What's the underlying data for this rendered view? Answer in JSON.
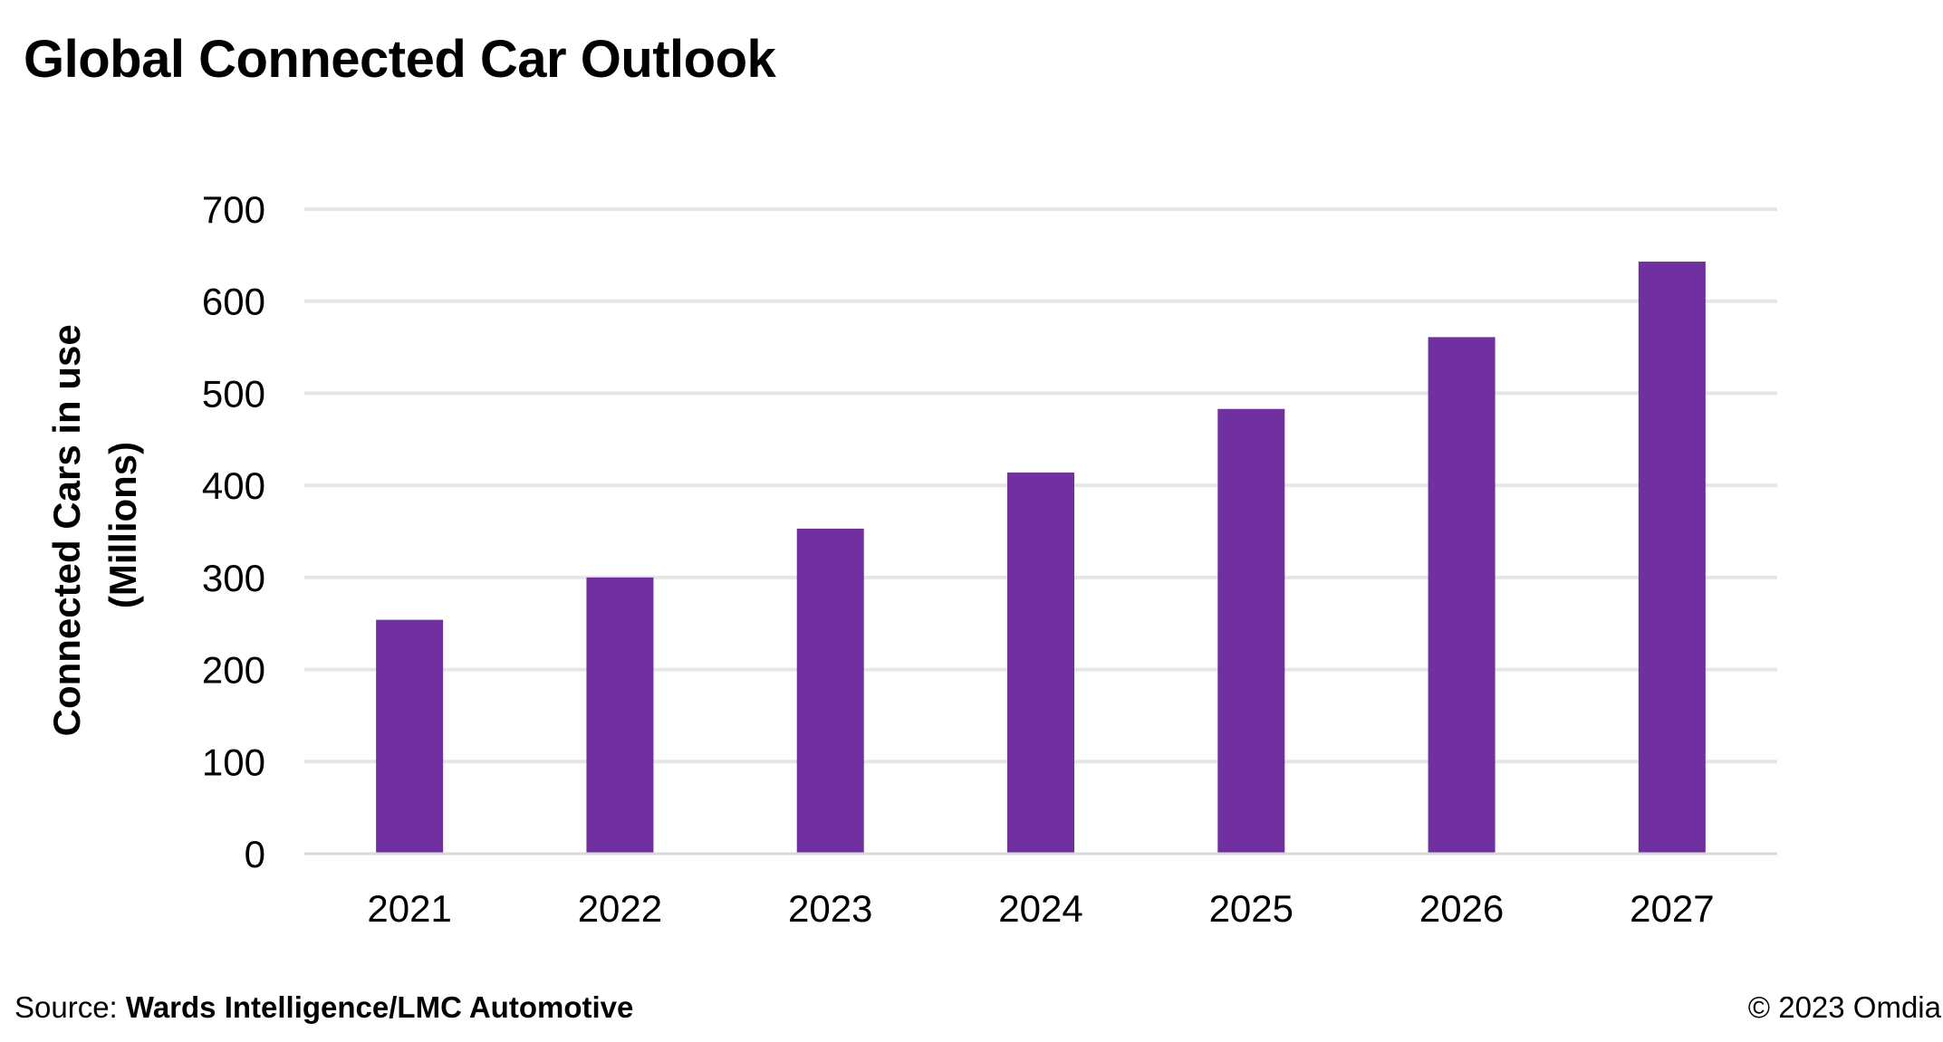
{
  "title": "Global Connected Car Outlook",
  "footer": {
    "source_label": "Source:",
    "source_name": "Wards Intelligence/LMC Automotive",
    "copyright": "© 2023 Omdia"
  },
  "colors": {
    "bar": "#7030A0",
    "grid": "#E6E6E6",
    "axis": "#D9D9D9"
  },
  "chart_data": {
    "type": "bar",
    "categories": [
      "2021",
      "2022",
      "2023",
      "2024",
      "2025",
      "2026",
      "2027"
    ],
    "values": [
      254,
      300,
      353,
      414,
      483,
      561,
      643
    ],
    "ylabel_lines": [
      "Connected Cars in use",
      "(Millions)"
    ],
    "xlabel": "",
    "ylim": [
      0,
      700
    ],
    "yticks": [
      0,
      100,
      200,
      300,
      400,
      500,
      600,
      700
    ],
    "grid": true,
    "legend": "none"
  }
}
